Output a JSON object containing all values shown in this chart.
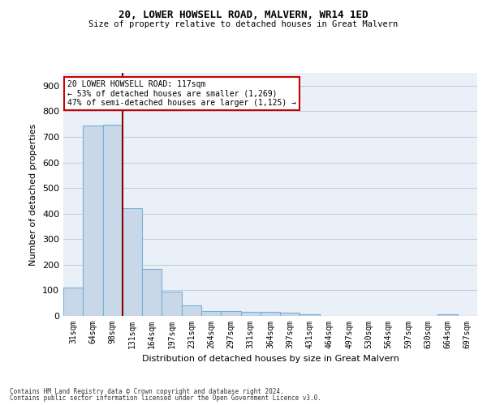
{
  "title": "20, LOWER HOWSELL ROAD, MALVERN, WR14 1ED",
  "subtitle": "Size of property relative to detached houses in Great Malvern",
  "xlabel": "Distribution of detached houses by size in Great Malvern",
  "ylabel": "Number of detached properties",
  "footnote1": "Contains HM Land Registry data © Crown copyright and database right 2024.",
  "footnote2": "Contains public sector information licensed under the Open Government Licence v3.0.",
  "bar_labels": [
    "31sqm",
    "64sqm",
    "98sqm",
    "131sqm",
    "164sqm",
    "197sqm",
    "231sqm",
    "264sqm",
    "297sqm",
    "331sqm",
    "364sqm",
    "397sqm",
    "431sqm",
    "464sqm",
    "497sqm",
    "530sqm",
    "564sqm",
    "597sqm",
    "630sqm",
    "664sqm",
    "697sqm"
  ],
  "bar_values": [
    110,
    745,
    748,
    420,
    185,
    95,
    42,
    20,
    20,
    17,
    17,
    14,
    7,
    0,
    0,
    0,
    0,
    0,
    0,
    7,
    0
  ],
  "bar_color": "#c8d8e8",
  "bar_edge_color": "#7aaed6",
  "ylim": [
    0,
    950
  ],
  "yticks": [
    0,
    100,
    200,
    300,
    400,
    500,
    600,
    700,
    800,
    900
  ],
  "property_bin_index": 2,
  "vline_color": "#8b0000",
  "annotation_text_line1": "20 LOWER HOWSELL ROAD: 117sqm",
  "annotation_text_line2": "← 53% of detached houses are smaller (1,269)",
  "annotation_text_line3": "47% of semi-detached houses are larger (1,125) →",
  "annotation_box_color": "#ffffff",
  "annotation_box_edge_color": "#cc0000",
  "grid_color": "#c0cfe0",
  "bg_color": "#eaf0f8"
}
